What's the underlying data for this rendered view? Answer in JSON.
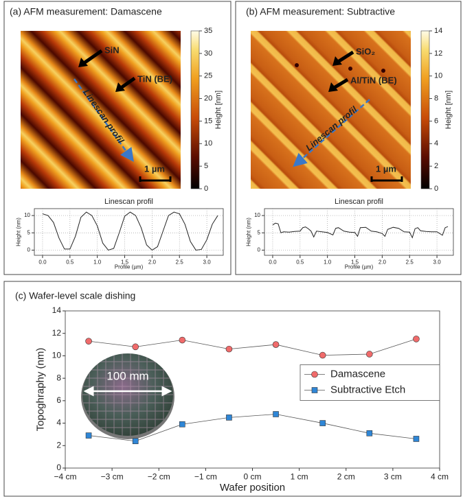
{
  "panels": [
    {
      "title": "(a) AFM measurement: Damascene",
      "annotations": [
        "SiN",
        "TiN (BE)",
        "Linescan profil",
        "1 µm"
      ],
      "colorbar": {
        "label": "Height [nm]",
        "lim": [
          0,
          35
        ],
        "ticks": [
          0,
          5,
          10,
          15,
          20,
          25,
          30,
          35
        ]
      }
    },
    {
      "title": "(b) AFM measurement: Subtractive",
      "annotations": [
        "SiO₂",
        "Al/TiN (BE)",
        "Linescan profil",
        "1 µm"
      ],
      "colorbar": {
        "label": "Height [nm]",
        "lim": [
          0,
          14
        ],
        "ticks": [
          0,
          2,
          4,
          6,
          8,
          10,
          12,
          14
        ]
      }
    },
    {
      "inset_label": "100 mm"
    }
  ],
  "chart_data": [
    {
      "type": "line",
      "title": "Linescan profil",
      "x_label": "Profile (µm)",
      "y_label": "Height (nm)",
      "color": "#222222",
      "grid": true,
      "x": [
        0.0,
        0.1,
        0.2,
        0.3,
        0.4,
        0.5,
        0.6,
        0.7,
        0.8,
        0.9,
        1.0,
        1.1,
        1.2,
        1.3,
        1.4,
        1.5,
        1.6,
        1.7,
        1.8,
        1.9,
        2.0,
        2.1,
        2.2,
        2.3,
        2.4,
        2.5,
        2.6,
        2.7,
        2.8,
        2.9,
        3.0,
        3.1,
        3.2
      ],
      "values": [
        10.5,
        10,
        8,
        3.5,
        0.3,
        0.3,
        4,
        9.5,
        11,
        10,
        7,
        2,
        0,
        0.5,
        5,
        9.8,
        11,
        10,
        6.5,
        1.5,
        0,
        1,
        5.5,
        10,
        11,
        10.5,
        7.5,
        2.5,
        0,
        0.2,
        3,
        7.5,
        10
      ],
      "xlim": [
        -0.15,
        3.3
      ],
      "ylim": [
        -1.5,
        12
      ],
      "xticks": [
        {
          "value": 0,
          "label": "0.0"
        },
        0.5,
        {
          "value": 1,
          "label": "1.0"
        },
        1.5,
        {
          "value": 2,
          "label": "2.0"
        },
        2.5,
        {
          "value": 3,
          "label": "3.0"
        }
      ],
      "yticks": [
        0,
        5,
        10
      ]
    },
    {
      "type": "line",
      "title": "Linescan profil",
      "x_label": "Profile (µm)",
      "y_label": "Height (nm)",
      "color": "#222222",
      "grid": true,
      "x": [
        0.0,
        0.05,
        0.1,
        0.15,
        0.2,
        0.3,
        0.4,
        0.5,
        0.55,
        0.6,
        0.65,
        0.7,
        0.75,
        0.8,
        0.9,
        1.0,
        1.1,
        1.15,
        1.2,
        1.3,
        1.4,
        1.5,
        1.55,
        1.6,
        1.7,
        1.8,
        1.9,
        2.0,
        2.05,
        2.1,
        2.2,
        2.3,
        2.4,
        2.5,
        2.55,
        2.6,
        2.65,
        2.7,
        2.8,
        2.9,
        3.0,
        3.1,
        3.15,
        3.2
      ],
      "values": [
        7.3,
        7.8,
        7.6,
        5,
        5.3,
        5.2,
        5.4,
        5.5,
        6.5,
        6.7,
        6.2,
        5.5,
        3.8,
        5.5,
        5.3,
        5.1,
        4.4,
        6.3,
        6.5,
        5.5,
        5.2,
        5.1,
        4.0,
        6.5,
        6.6,
        5.5,
        5.3,
        4.8,
        4.0,
        6.0,
        6.6,
        6.3,
        5.3,
        5.2,
        3.6,
        6.2,
        6.5,
        5.6,
        5.4,
        5.3,
        5.3,
        4.3,
        6.5,
        6.8
      ],
      "xlim": [
        -0.15,
        3.3
      ],
      "ylim": [
        -1.5,
        12
      ],
      "xticks": [
        {
          "value": 0,
          "label": "0.0"
        },
        0.5,
        {
          "value": 1,
          "label": "1.0"
        },
        1.5,
        {
          "value": 2,
          "label": "2.0"
        },
        2.5,
        {
          "value": 3,
          "label": "3.0"
        }
      ],
      "yticks": [
        0,
        5,
        10
      ]
    },
    {
      "type": "line",
      "title": "(c) Wafer-level scale dishing",
      "x_label": "Wafer position",
      "y_label": "Topoghraphy (nm)",
      "grid": false,
      "legend": "right",
      "x": [
        -3.5,
        -2.5,
        -1.5,
        -0.5,
        0.5,
        1.5,
        2.5,
        3.5
      ],
      "series": [
        {
          "name": "Damascene",
          "color": "#f06b6b",
          "marker": "circle",
          "values": [
            11.3,
            10.8,
            11.4,
            10.6,
            11.0,
            10.05,
            10.15,
            11.5
          ]
        },
        {
          "name": "Subtractive Etch",
          "color": "#2f86d6",
          "marker": "square",
          "values": [
            2.9,
            2.4,
            3.9,
            4.5,
            4.8,
            4.0,
            3.1,
            2.6
          ]
        }
      ],
      "xlim": [
        -4,
        4
      ],
      "ylim": [
        0,
        14
      ],
      "xticks": [
        {
          "value": -4,
          "label": "−4 cm"
        },
        {
          "value": -3,
          "label": "−3 cm"
        },
        {
          "value": -2,
          "label": "−2 cm"
        },
        {
          "value": -1,
          "label": "−1 cm"
        },
        {
          "value": 0,
          "label": "0 cm"
        },
        {
          "value": 1,
          "label": "1 cm"
        },
        {
          "value": 2,
          "label": "2 cm"
        },
        {
          "value": 3,
          "label": "3 cm"
        },
        {
          "value": 4,
          "label": "4 cm"
        }
      ],
      "yticks": [
        0,
        2,
        4,
        6,
        8,
        10,
        12,
        14
      ]
    }
  ]
}
